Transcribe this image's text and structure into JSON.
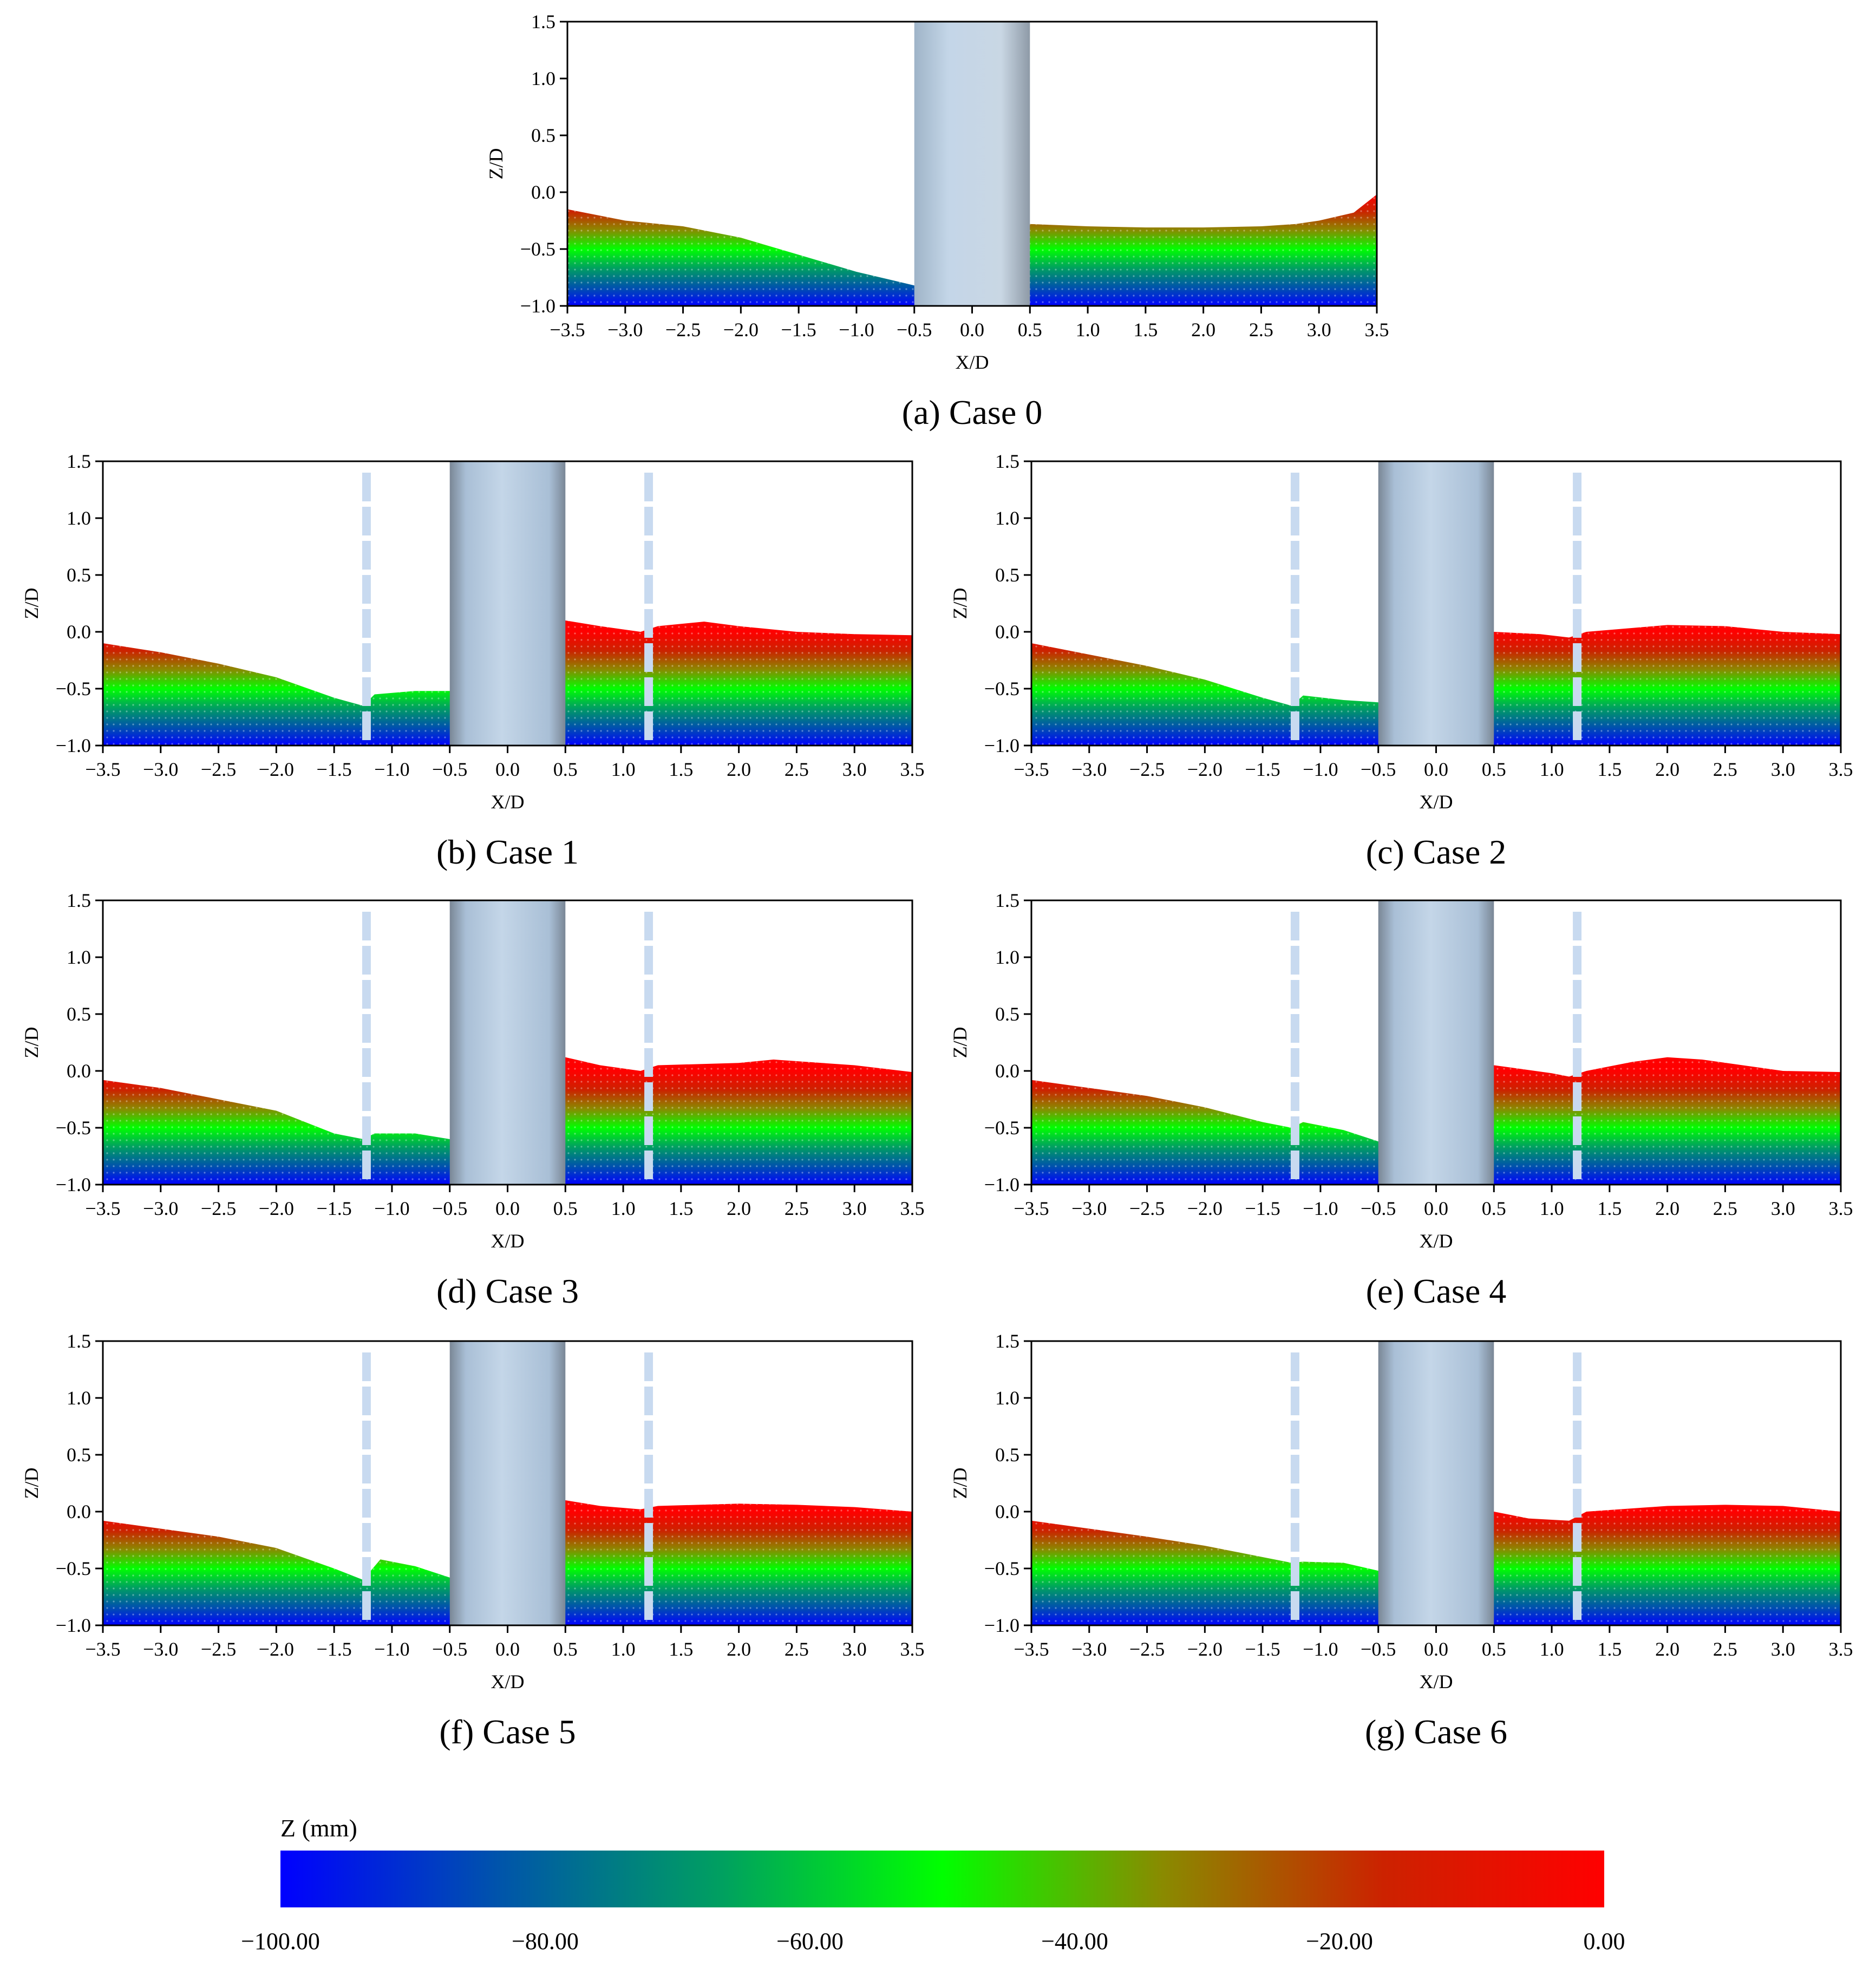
{
  "colors": {
    "colormap": [
      "#0000ff",
      "#0055aa",
      "#00a060",
      "#00ff00",
      "#8a8a00",
      "#cc2200",
      "#ff0000"
    ],
    "pile_light": "#c4d6e8",
    "pile_mid": "#a9bfd6",
    "pile_dark": "#7a8796",
    "plate": "#c8daf0",
    "axis": "#000000"
  },
  "chart_data": [
    {
      "id": "a",
      "type": "scatter",
      "caption": "(a) Case 0",
      "xlabel": "X/D",
      "ylabel": "Z/D",
      "xlim": [
        -3.5,
        3.5
      ],
      "ylim": [
        -1.0,
        1.5
      ],
      "xticks": [
        "−3.5",
        "−3.0",
        "−2.5",
        "−2.0",
        "−1.5",
        "−1.0",
        "−0.5",
        "0.0",
        "0.5",
        "1.0",
        "1.5",
        "2.0",
        "2.5",
        "3.0",
        "3.5"
      ],
      "yticks": [
        "−1.0",
        "−0.5",
        "0.0",
        "0.5",
        "1.0",
        "1.5"
      ],
      "pile": [
        -0.5,
        0.5
      ],
      "plates": [],
      "bed_surface": [
        [
          -3.5,
          -0.15
        ],
        [
          -3.0,
          -0.25
        ],
        [
          -2.5,
          -0.3
        ],
        [
          -2.0,
          -0.4
        ],
        [
          -1.5,
          -0.55
        ],
        [
          -1.0,
          -0.7
        ],
        [
          -0.5,
          -0.82
        ],
        [
          0.5,
          -0.28
        ],
        [
          1.0,
          -0.3
        ],
        [
          1.5,
          -0.31
        ],
        [
          2.0,
          -0.31
        ],
        [
          2.5,
          -0.3
        ],
        [
          2.8,
          -0.28
        ],
        [
          3.0,
          -0.25
        ],
        [
          3.3,
          -0.18
        ],
        [
          3.5,
          -0.02
        ]
      ]
    },
    {
      "id": "b",
      "type": "scatter",
      "caption": "(b) Case 1",
      "xlabel": "X/D",
      "ylabel": "Z/D",
      "xlim": [
        -3.5,
        3.5
      ],
      "ylim": [
        -1.0,
        1.5
      ],
      "xticks": [
        "−3.5",
        "−3.0",
        "−2.5",
        "−2.0",
        "−1.5",
        "−1.0",
        "−0.5",
        "0.0",
        "0.5",
        "1.0",
        "1.5",
        "2.0",
        "2.5",
        "3.0",
        "3.5"
      ],
      "yticks": [
        "−1.0",
        "−0.5",
        "0.0",
        "0.5",
        "1.0",
        "1.5"
      ],
      "pile": [
        -0.5,
        0.5
      ],
      "plates": [
        -1.22,
        1.22
      ],
      "bed_surface": [
        [
          -3.5,
          -0.1
        ],
        [
          -3.0,
          -0.18
        ],
        [
          -2.5,
          -0.28
        ],
        [
          -2.0,
          -0.4
        ],
        [
          -1.5,
          -0.58
        ],
        [
          -1.25,
          -0.65
        ],
        [
          -1.15,
          -0.55
        ],
        [
          -0.8,
          -0.52
        ],
        [
          -0.5,
          -0.52
        ],
        [
          0.5,
          0.1
        ],
        [
          0.8,
          0.05
        ],
        [
          1.15,
          0.0
        ],
        [
          1.3,
          0.05
        ],
        [
          1.7,
          0.09
        ],
        [
          2.0,
          0.05
        ],
        [
          2.5,
          0.0
        ],
        [
          3.0,
          -0.02
        ],
        [
          3.5,
          -0.03
        ]
      ]
    },
    {
      "id": "c",
      "type": "scatter",
      "caption": "(c) Case 2",
      "xlabel": "X/D",
      "ylabel": "Z/D",
      "xlim": [
        -3.5,
        3.5
      ],
      "ylim": [
        -1.0,
        1.5
      ],
      "xticks": [
        "−3.5",
        "−3.0",
        "−2.5",
        "−2.0",
        "−1.5",
        "−1.0",
        "−0.5",
        "0.0",
        "0.5",
        "1.0",
        "1.5",
        "2.0",
        "2.5",
        "3.0",
        "3.5"
      ],
      "yticks": [
        "−1.0",
        "−0.5",
        "0.0",
        "0.5",
        "1.0",
        "1.5"
      ],
      "pile": [
        -0.5,
        0.5
      ],
      "plates": [
        -1.22,
        1.22
      ],
      "bed_surface": [
        [
          -3.5,
          -0.1
        ],
        [
          -3.0,
          -0.2
        ],
        [
          -2.5,
          -0.3
        ],
        [
          -2.0,
          -0.42
        ],
        [
          -1.5,
          -0.58
        ],
        [
          -1.25,
          -0.65
        ],
        [
          -1.15,
          -0.56
        ],
        [
          -0.8,
          -0.6
        ],
        [
          -0.5,
          -0.62
        ],
        [
          0.5,
          0.0
        ],
        [
          0.9,
          -0.02
        ],
        [
          1.15,
          -0.05
        ],
        [
          1.3,
          0.0
        ],
        [
          2.0,
          0.06
        ],
        [
          2.5,
          0.05
        ],
        [
          3.0,
          0.0
        ],
        [
          3.5,
          -0.02
        ]
      ]
    },
    {
      "id": "d",
      "type": "scatter",
      "caption": "(d) Case 3",
      "xlabel": "X/D",
      "ylabel": "Z/D",
      "xlim": [
        -3.5,
        3.5
      ],
      "ylim": [
        -1.0,
        1.5
      ],
      "xticks": [
        "−3.5",
        "−3.0",
        "−2.5",
        "−2.0",
        "−1.5",
        "−1.0",
        "−0.5",
        "0.0",
        "0.5",
        "1.0",
        "1.5",
        "2.0",
        "2.5",
        "3.0",
        "3.5"
      ],
      "yticks": [
        "−1.0",
        "−0.5",
        "0.0",
        "0.5",
        "1.0",
        "1.5"
      ],
      "pile": [
        -0.5,
        0.5
      ],
      "plates": [
        -1.22,
        1.22
      ],
      "bed_surface": [
        [
          -3.5,
          -0.08
        ],
        [
          -3.0,
          -0.15
        ],
        [
          -2.5,
          -0.25
        ],
        [
          -2.0,
          -0.35
        ],
        [
          -1.5,
          -0.55
        ],
        [
          -1.25,
          -0.6
        ],
        [
          -1.15,
          -0.55
        ],
        [
          -0.8,
          -0.55
        ],
        [
          -0.5,
          -0.6
        ],
        [
          0.5,
          0.12
        ],
        [
          0.8,
          0.05
        ],
        [
          1.15,
          0.0
        ],
        [
          1.3,
          0.05
        ],
        [
          2.0,
          0.07
        ],
        [
          2.3,
          0.1
        ],
        [
          3.0,
          0.05
        ],
        [
          3.5,
          -0.01
        ]
      ]
    },
    {
      "id": "e",
      "type": "scatter",
      "caption": "(e) Case 4",
      "xlabel": "X/D",
      "ylabel": "Z/D",
      "xlim": [
        -3.5,
        3.5
      ],
      "ylim": [
        -1.0,
        1.5
      ],
      "xticks": [
        "−3.5",
        "−3.0",
        "−2.5",
        "−2.0",
        "−1.5",
        "−1.0",
        "−0.5",
        "0.0",
        "0.5",
        "1.0",
        "1.5",
        "2.0",
        "2.5",
        "3.0",
        "3.5"
      ],
      "yticks": [
        "−1.0",
        "−0.5",
        "0.0",
        "0.5",
        "1.0",
        "1.5"
      ],
      "pile": [
        -0.5,
        0.5
      ],
      "plates": [
        -1.22,
        1.22
      ],
      "bed_surface": [
        [
          -3.5,
          -0.08
        ],
        [
          -3.0,
          -0.15
        ],
        [
          -2.5,
          -0.22
        ],
        [
          -2.0,
          -0.32
        ],
        [
          -1.5,
          -0.45
        ],
        [
          -1.25,
          -0.5
        ],
        [
          -1.15,
          -0.45
        ],
        [
          -0.8,
          -0.52
        ],
        [
          -0.5,
          -0.62
        ],
        [
          0.5,
          0.05
        ],
        [
          1.0,
          -0.02
        ],
        [
          1.15,
          -0.05
        ],
        [
          1.3,
          0.0
        ],
        [
          1.7,
          0.08
        ],
        [
          2.0,
          0.12
        ],
        [
          2.3,
          0.1
        ],
        [
          3.0,
          0.0
        ],
        [
          3.5,
          -0.01
        ]
      ]
    },
    {
      "id": "f",
      "type": "scatter",
      "caption": "(f) Case 5",
      "xlabel": "X/D",
      "ylabel": "Z/D",
      "xlim": [
        -3.5,
        3.5
      ],
      "ylim": [
        -1.0,
        1.5
      ],
      "xticks": [
        "−3.5",
        "−3.0",
        "−2.5",
        "−2.0",
        "−1.5",
        "−1.0",
        "−0.5",
        "0.0",
        "0.5",
        "1.0",
        "1.5",
        "2.0",
        "2.5",
        "3.0",
        "3.5"
      ],
      "yticks": [
        "−1.0",
        "−0.5",
        "0.0",
        "0.5",
        "1.0",
        "1.5"
      ],
      "pile": [
        -0.5,
        0.5
      ],
      "plates": [
        -1.22,
        1.22
      ],
      "bed_surface": [
        [
          -3.5,
          -0.08
        ],
        [
          -3.0,
          -0.15
        ],
        [
          -2.5,
          -0.22
        ],
        [
          -2.0,
          -0.32
        ],
        [
          -1.5,
          -0.5
        ],
        [
          -1.25,
          -0.6
        ],
        [
          -1.1,
          -0.42
        ],
        [
          -0.8,
          -0.48
        ],
        [
          -0.5,
          -0.58
        ],
        [
          0.5,
          0.1
        ],
        [
          0.8,
          0.05
        ],
        [
          1.15,
          0.02
        ],
        [
          1.3,
          0.05
        ],
        [
          2.0,
          0.07
        ],
        [
          2.5,
          0.06
        ],
        [
          3.0,
          0.04
        ],
        [
          3.5,
          0.0
        ]
      ]
    },
    {
      "id": "g",
      "type": "scatter",
      "caption": "(g) Case 6",
      "xlabel": "X/D",
      "ylabel": "Z/D",
      "xlim": [
        -3.5,
        3.5
      ],
      "ylim": [
        -1.0,
        1.5
      ],
      "xticks": [
        "−3.5",
        "−3.0",
        "−2.5",
        "−2.0",
        "−1.5",
        "−1.0",
        "−0.5",
        "0.0",
        "0.5",
        "1.0",
        "1.5",
        "2.0",
        "2.5",
        "3.0",
        "3.5"
      ],
      "yticks": [
        "−1.0",
        "−0.5",
        "0.0",
        "0.5",
        "1.0",
        "1.5"
      ],
      "pile": [
        -0.5,
        0.5
      ],
      "plates": [
        -1.22,
        1.22
      ],
      "bed_surface": [
        [
          -3.5,
          -0.08
        ],
        [
          -3.0,
          -0.15
        ],
        [
          -2.5,
          -0.22
        ],
        [
          -2.0,
          -0.3
        ],
        [
          -1.5,
          -0.4
        ],
        [
          -1.25,
          -0.45
        ],
        [
          -1.15,
          -0.44
        ],
        [
          -0.8,
          -0.45
        ],
        [
          -0.5,
          -0.52
        ],
        [
          0.5,
          0.0
        ],
        [
          0.8,
          -0.06
        ],
        [
          1.15,
          -0.08
        ],
        [
          1.3,
          0.0
        ],
        [
          2.0,
          0.05
        ],
        [
          2.5,
          0.06
        ],
        [
          3.0,
          0.05
        ],
        [
          3.5,
          0.0
        ]
      ]
    }
  ],
  "colorbar": {
    "title": "Z (mm)",
    "range": [
      -100,
      0
    ],
    "tick_labels": [
      "−100.00",
      "−80.00",
      "−60.00",
      "−40.00",
      "−20.00",
      "0.00"
    ]
  }
}
